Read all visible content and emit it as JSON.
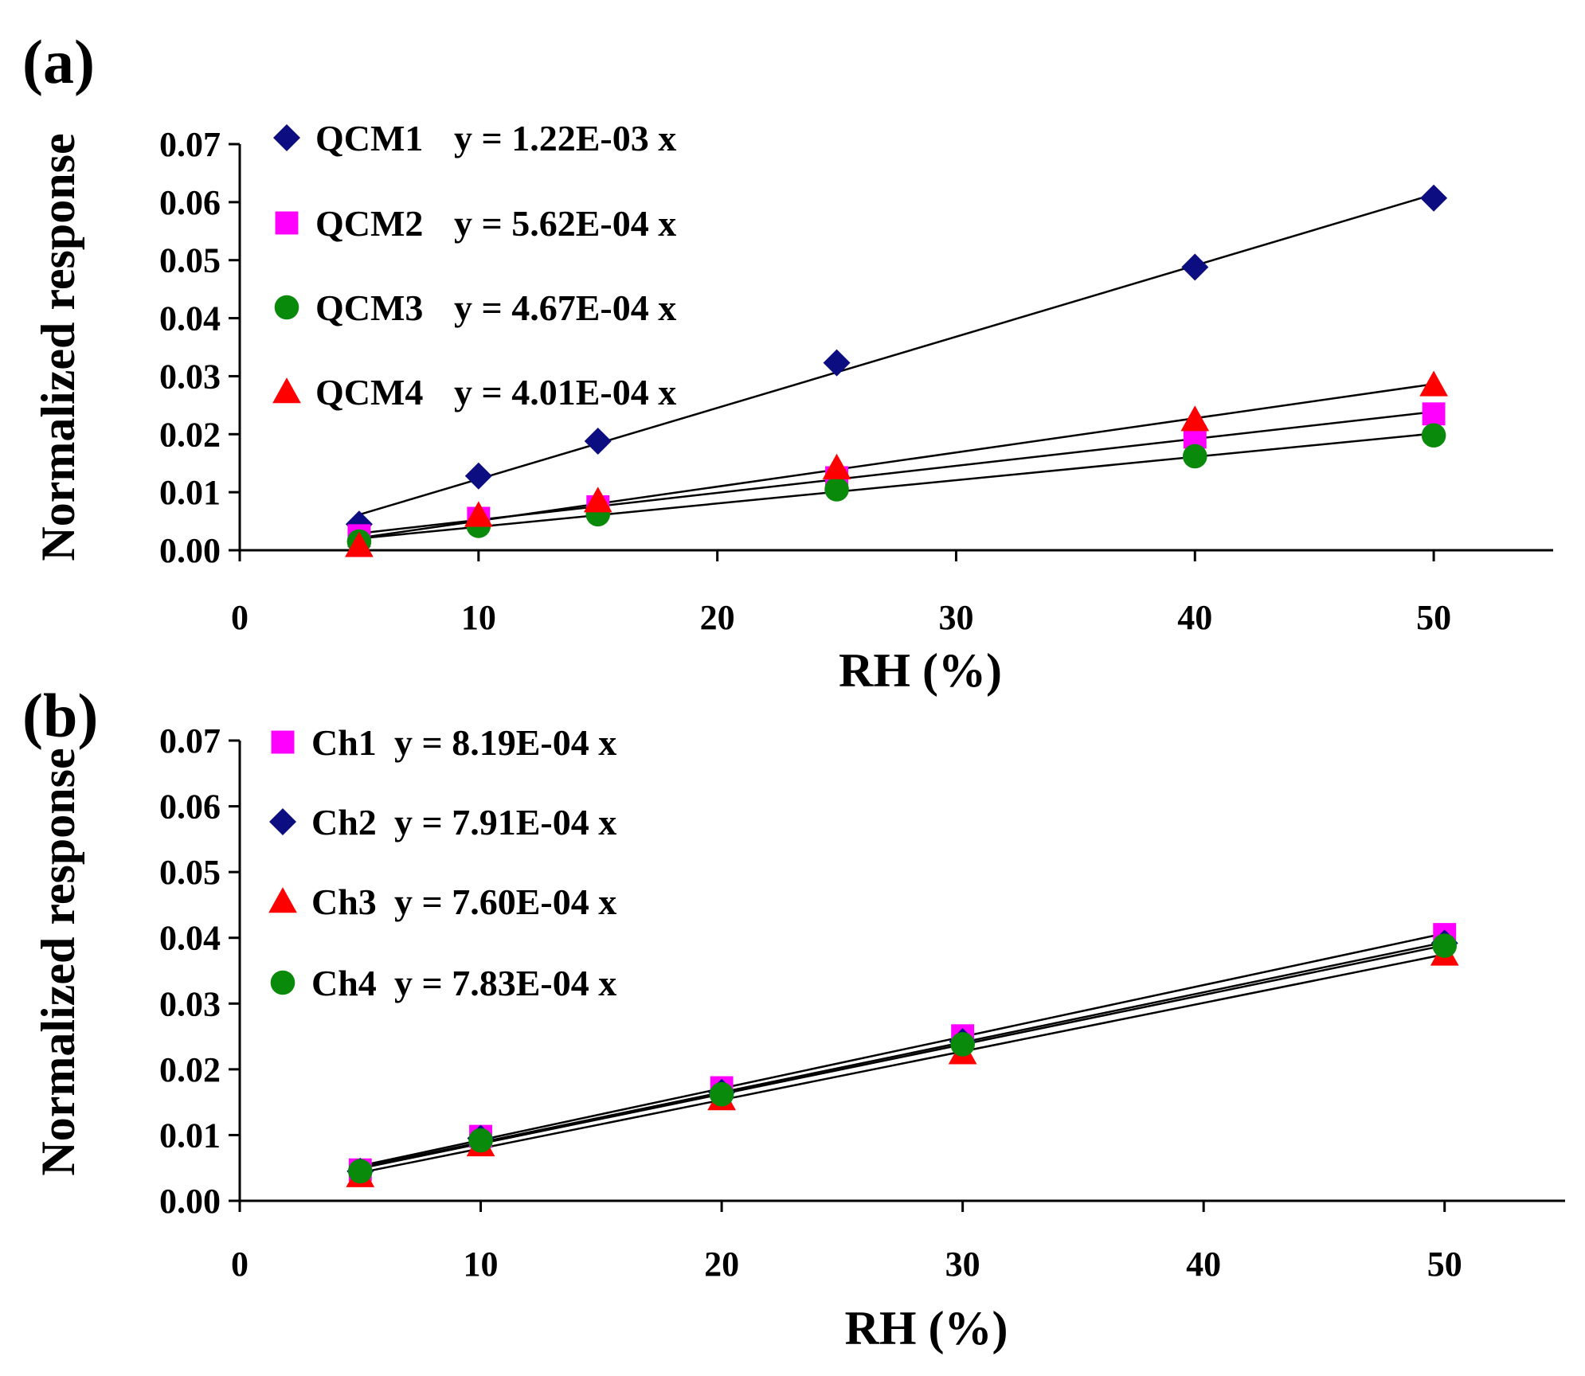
{
  "chart_data": [
    {
      "type": "scatter",
      "panel_label": "(a)",
      "xlabel": "RH (%)",
      "ylabel": "Normalized response",
      "xlim": [
        0,
        55
      ],
      "ylim": [
        0,
        0.07
      ],
      "xticks": [
        0,
        10,
        20,
        30,
        40,
        50
      ],
      "yticks": [
        0.0,
        0.01,
        0.02,
        0.03,
        0.04,
        0.05,
        0.06,
        0.07
      ],
      "xtick_labels": [
        "0",
        "10",
        "20",
        "30",
        "40",
        "50"
      ],
      "ytick_labels": [
        "0.00",
        "0.01",
        "0.02",
        "0.03",
        "0.04",
        "0.05",
        "0.06",
        "0.07"
      ],
      "grid": false,
      "legend_position": "top-left",
      "series": [
        {
          "name": "QCM1",
          "equation": "y = 1.22E-03 x",
          "marker": "diamond",
          "color": "#0d0d82",
          "x": [
            5,
            10,
            15,
            25,
            40,
            50
          ],
          "y": [
            0.0045,
            0.0128,
            0.0188,
            0.0323,
            0.0488,
            0.0607
          ],
          "fit_slope": 0.00122
        },
        {
          "name": "QCM2",
          "equation": "y = 5.62E-04 x",
          "marker": "square",
          "color": "#ff00ff",
          "x": [
            5,
            10,
            15,
            25,
            40,
            50
          ],
          "y": [
            0.0025,
            0.0055,
            0.0075,
            0.0125,
            0.0195,
            0.0235
          ],
          "fit_slope": 0.000562
        },
        {
          "name": "QCM3",
          "equation": "y = 4.67E-04 x",
          "marker": "circle",
          "color": "#0a8a0a",
          "x": [
            5,
            10,
            15,
            25,
            40,
            50
          ],
          "y": [
            0.0015,
            0.0042,
            0.0062,
            0.0105,
            0.0162,
            0.0198
          ],
          "fit_slope": 0.000467
        },
        {
          "name": "QCM4",
          "equation": "y = 4.01E-04 x",
          "marker": "triangle",
          "color": "#ff0000",
          "x": [
            5,
            10,
            15,
            25,
            40,
            50
          ],
          "y": [
            0.0008,
            0.006,
            0.0085,
            0.0142,
            0.0225,
            0.0285
          ],
          "fit_slope": 0.000401
        }
      ]
    },
    {
      "type": "scatter",
      "panel_label": "(b)",
      "xlabel": "RH (%)",
      "ylabel": "Normalized response",
      "xlim": [
        0,
        55
      ],
      "ylim": [
        0,
        0.07
      ],
      "xticks": [
        0,
        10,
        20,
        30,
        40,
        50
      ],
      "yticks": [
        0.0,
        0.01,
        0.02,
        0.03,
        0.04,
        0.05,
        0.06,
        0.07
      ],
      "xtick_labels": [
        "0",
        "10",
        "20",
        "30",
        "40",
        "50"
      ],
      "ytick_labels": [
        "0.00",
        "0.01",
        "0.02",
        "0.03",
        "0.04",
        "0.05",
        "0.06",
        "0.07"
      ],
      "grid": false,
      "legend_position": "top-left",
      "series": [
        {
          "name": "Ch1",
          "equation": "y = 8.19E-04 x",
          "marker": "square",
          "color": "#ff00ff",
          "x": [
            5,
            10,
            20,
            30,
            50
          ],
          "y": [
            0.0047,
            0.0098,
            0.0172,
            0.0251,
            0.0405
          ],
          "fit_slope": 0.000819
        },
        {
          "name": "Ch2",
          "equation": "y = 7.91E-04 x",
          "marker": "diamond",
          "color": "#0d0d82",
          "x": [
            5,
            10,
            20,
            30,
            50
          ],
          "y": [
            0.0045,
            0.0095,
            0.0165,
            0.0242,
            0.0392
          ],
          "fit_slope": 0.000791
        },
        {
          "name": "Ch3",
          "equation": "y = 7.60E-04 x",
          "marker": "triangle",
          "color": "#ff0000",
          "x": [
            5,
            10,
            20,
            30,
            50
          ],
          "y": [
            0.0038,
            0.0085,
            0.0155,
            0.0225,
            0.0375
          ],
          "fit_slope": 0.00076
        },
        {
          "name": "Ch4",
          "equation": "y = 7.83E-04 x",
          "marker": "circle",
          "color": "#0a8a0a",
          "x": [
            5,
            10,
            20,
            30,
            50
          ],
          "y": [
            0.0045,
            0.0092,
            0.0162,
            0.0238,
            0.0388
          ],
          "fit_slope": 0.000783
        }
      ]
    }
  ]
}
